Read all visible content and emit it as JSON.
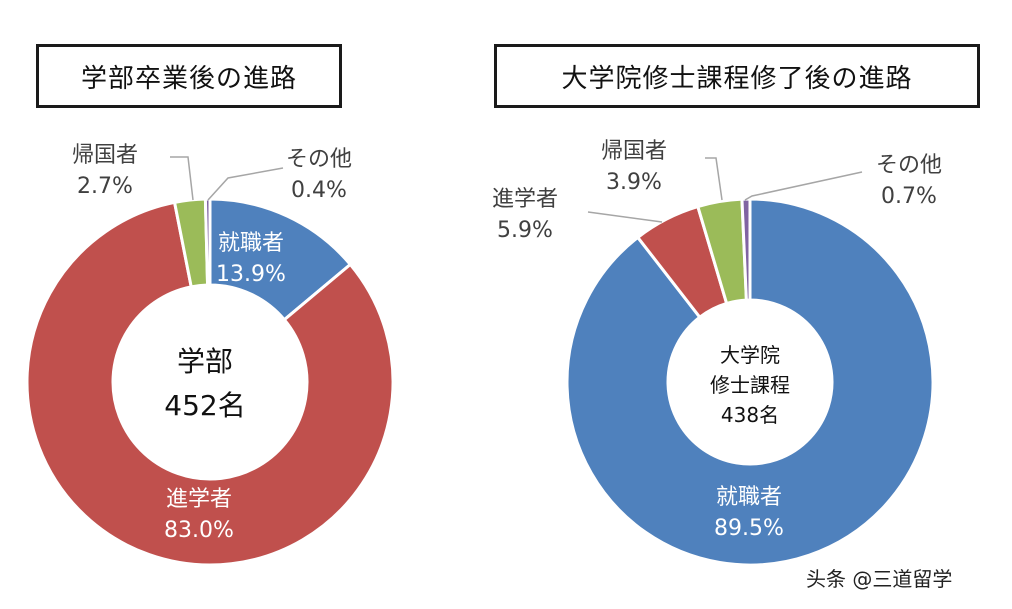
{
  "charts": [
    {
      "title": "学部卒業後の進路",
      "center_line1": "学部",
      "center_line2": "452名",
      "slices": [
        {
          "label": "就職者",
          "pct": "13.9%",
          "value": 13.9,
          "color": "#4f81bd"
        },
        {
          "label": "進学者",
          "pct": "83.0%",
          "value": 83.0,
          "color": "#c0504d"
        },
        {
          "label": "帰国者",
          "pct": "2.7%",
          "value": 2.7,
          "color": "#9bbb59"
        },
        {
          "label": "その他",
          "pct": "0.4%",
          "value": 0.4,
          "color": "#8064a2"
        }
      ]
    },
    {
      "title": "大学院修士課程修了後の進路",
      "center_line1": "大学院",
      "center_line2": "修士課程",
      "center_line3": "438名",
      "slices": [
        {
          "label": "就職者",
          "pct": "89.5%",
          "value": 89.5,
          "color": "#4f81bd"
        },
        {
          "label": "進学者",
          "pct": "5.9%",
          "value": 5.9,
          "color": "#c0504d"
        },
        {
          "label": "帰国者",
          "pct": "3.9%",
          "value": 3.9,
          "color": "#9bbb59"
        },
        {
          "label": "その他",
          "pct": "0.7%",
          "value": 0.7,
          "color": "#8064a2"
        }
      ]
    }
  ],
  "watermark": "头条 @三道留学",
  "chart_data": [
    {
      "type": "pie",
      "title": "学部卒業後の進路",
      "center_text": "学部 452名",
      "categories": [
        "就職者",
        "進学者",
        "帰国者",
        "その他"
      ],
      "values": [
        13.9,
        83.0,
        2.7,
        0.4
      ],
      "unit": "%",
      "donut": true
    },
    {
      "type": "pie",
      "title": "大学院修士課程修了後の進路",
      "center_text": "大学院 修士課程 438名",
      "categories": [
        "就職者",
        "進学者",
        "帰国者",
        "その他"
      ],
      "values": [
        89.5,
        5.9,
        3.9,
        0.7
      ],
      "unit": "%",
      "donut": true
    }
  ]
}
